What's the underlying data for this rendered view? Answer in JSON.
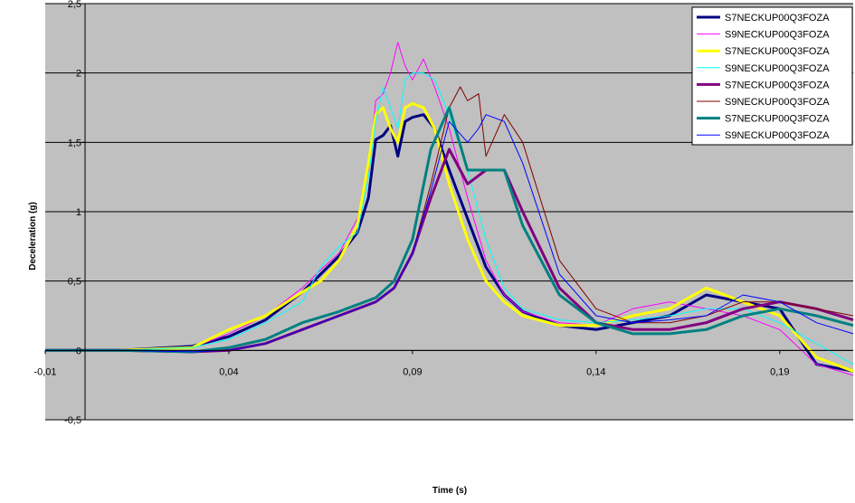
{
  "chart_data": {
    "type": "line",
    "xlabel": "Time (s)",
    "ylabel": "Deceleration (g)",
    "xlim": [
      -0.01,
      0.21
    ],
    "ylim": [
      -0.5,
      2.5
    ],
    "x_ticks": [
      "-0,01",
      "0,04",
      "0,09",
      "0,14",
      "0,19"
    ],
    "x_tick_values": [
      -0.01,
      0.04,
      0.09,
      0.14,
      0.19
    ],
    "y_ticks": [
      "-0,5",
      "0",
      "0,5",
      "1",
      "1,5",
      "2",
      "2,5"
    ],
    "y_tick_values": [
      -0.5,
      0,
      0.5,
      1,
      1.5,
      2,
      2.5
    ],
    "plot_background": "#c0c0c0",
    "grid": "horizontal",
    "legend_position": "top-right",
    "series": [
      {
        "name": "S7NECKUP00Q3FOZA",
        "color": "#000080",
        "width": 3,
        "x": [
          -0.01,
          0.01,
          0.03,
          0.04,
          0.05,
          0.06,
          0.065,
          0.07,
          0.075,
          0.078,
          0.08,
          0.082,
          0.084,
          0.086,
          0.088,
          0.09,
          0.093,
          0.096,
          0.1,
          0.105,
          0.11,
          0.115,
          0.12,
          0.13,
          0.14,
          0.15,
          0.16,
          0.17,
          0.18,
          0.19,
          0.2,
          0.21
        ],
        "y": [
          0,
          0,
          0.03,
          0.1,
          0.22,
          0.42,
          0.55,
          0.68,
          0.85,
          1.1,
          1.52,
          1.55,
          1.62,
          1.4,
          1.65,
          1.68,
          1.7,
          1.6,
          1.3,
          0.95,
          0.6,
          0.4,
          0.28,
          0.18,
          0.15,
          0.2,
          0.25,
          0.4,
          0.35,
          0.3,
          -0.1,
          -0.15
        ]
      },
      {
        "name": "S9NECKUP00Q3FOZA",
        "color": "#ff00ff",
        "width": 1,
        "x": [
          -0.01,
          0.01,
          0.03,
          0.04,
          0.05,
          0.06,
          0.065,
          0.07,
          0.075,
          0.078,
          0.08,
          0.082,
          0.084,
          0.086,
          0.088,
          0.09,
          0.093,
          0.096,
          0.1,
          0.105,
          0.11,
          0.115,
          0.12,
          0.13,
          0.14,
          0.15,
          0.16,
          0.17,
          0.18,
          0.19,
          0.2,
          0.21
        ],
        "y": [
          0,
          0,
          0.02,
          0.12,
          0.25,
          0.45,
          0.58,
          0.7,
          0.95,
          1.3,
          1.8,
          1.85,
          2.0,
          2.22,
          2.05,
          1.95,
          2.1,
          1.9,
          1.6,
          1.1,
          0.65,
          0.4,
          0.28,
          0.2,
          0.18,
          0.3,
          0.35,
          0.3,
          0.25,
          0.15,
          -0.1,
          -0.18
        ]
      },
      {
        "name": "S7NECKUP00Q3FOZA",
        "color": "#ffff00",
        "width": 3,
        "x": [
          -0.01,
          0.01,
          0.03,
          0.04,
          0.05,
          0.06,
          0.065,
          0.07,
          0.075,
          0.078,
          0.08,
          0.082,
          0.084,
          0.086,
          0.088,
          0.09,
          0.093,
          0.096,
          0.1,
          0.105,
          0.11,
          0.115,
          0.12,
          0.13,
          0.14,
          0.15,
          0.16,
          0.17,
          0.18,
          0.19,
          0.2,
          0.21
        ],
        "y": [
          0,
          0,
          0.02,
          0.15,
          0.25,
          0.42,
          0.5,
          0.65,
          0.9,
          1.35,
          1.7,
          1.75,
          1.6,
          1.5,
          1.75,
          1.78,
          1.75,
          1.6,
          1.2,
          0.8,
          0.5,
          0.35,
          0.25,
          0.18,
          0.18,
          0.25,
          0.3,
          0.45,
          0.35,
          0.25,
          -0.05,
          -0.15
        ]
      },
      {
        "name": "S9NECKUP00Q3FOZA",
        "color": "#00ffff",
        "width": 1,
        "x": [
          -0.01,
          0.01,
          0.03,
          0.04,
          0.05,
          0.06,
          0.065,
          0.07,
          0.075,
          0.078,
          0.08,
          0.082,
          0.084,
          0.086,
          0.088,
          0.09,
          0.093,
          0.096,
          0.1,
          0.105,
          0.11,
          0.115,
          0.12,
          0.13,
          0.14,
          0.15,
          0.16,
          0.17,
          0.18,
          0.19,
          0.2,
          0.21
        ],
        "y": [
          0,
          0,
          0.02,
          0.08,
          0.2,
          0.35,
          0.6,
          0.75,
          0.85,
          1.25,
          1.65,
          1.9,
          1.75,
          1.6,
          1.95,
          2.0,
          2.0,
          1.95,
          1.7,
          1.3,
          0.8,
          0.45,
          0.3,
          0.22,
          0.2,
          0.22,
          0.25,
          0.3,
          0.3,
          0.2,
          0.05,
          -0.1
        ]
      },
      {
        "name": "S7NECKUP00Q3FOZA",
        "color": "#800080",
        "width": 3,
        "x": [
          -0.01,
          0.01,
          0.03,
          0.04,
          0.05,
          0.06,
          0.07,
          0.08,
          0.085,
          0.09,
          0.095,
          0.1,
          0.105,
          0.11,
          0.115,
          0.12,
          0.13,
          0.14,
          0.15,
          0.16,
          0.17,
          0.18,
          0.19,
          0.2,
          0.21
        ],
        "y": [
          0,
          0,
          -0.01,
          0.0,
          0.05,
          0.15,
          0.25,
          0.35,
          0.45,
          0.7,
          1.1,
          1.45,
          1.2,
          1.3,
          1.3,
          1.0,
          0.45,
          0.2,
          0.15,
          0.15,
          0.2,
          0.3,
          0.35,
          0.3,
          0.22
        ]
      },
      {
        "name": "S9NECKUP00Q3FOZA",
        "color": "#800000",
        "width": 1,
        "x": [
          -0.01,
          0.01,
          0.03,
          0.04,
          0.05,
          0.06,
          0.07,
          0.08,
          0.085,
          0.09,
          0.095,
          0.1,
          0.103,
          0.105,
          0.108,
          0.11,
          0.115,
          0.12,
          0.13,
          0.14,
          0.15,
          0.16,
          0.17,
          0.18,
          0.19,
          0.2,
          0.21
        ],
        "y": [
          0,
          0,
          -0.01,
          0.0,
          0.05,
          0.15,
          0.25,
          0.35,
          0.45,
          0.7,
          1.2,
          1.75,
          1.9,
          1.8,
          1.85,
          1.4,
          1.7,
          1.5,
          0.65,
          0.3,
          0.2,
          0.2,
          0.25,
          0.35,
          0.35,
          0.3,
          0.25
        ]
      },
      {
        "name": "S7NECKUP00Q3FOZA",
        "color": "#008080",
        "width": 3,
        "x": [
          -0.01,
          0.01,
          0.03,
          0.04,
          0.05,
          0.06,
          0.07,
          0.08,
          0.085,
          0.09,
          0.095,
          0.1,
          0.105,
          0.11,
          0.115,
          0.12,
          0.13,
          0.14,
          0.15,
          0.16,
          0.17,
          0.18,
          0.19,
          0.2,
          0.21
        ],
        "y": [
          0,
          0,
          -0.01,
          0.02,
          0.08,
          0.2,
          0.28,
          0.38,
          0.5,
          0.8,
          1.45,
          1.75,
          1.3,
          1.3,
          1.3,
          0.9,
          0.4,
          0.2,
          0.12,
          0.12,
          0.15,
          0.25,
          0.3,
          0.25,
          0.18
        ]
      },
      {
        "name": "S9NECKUP00Q3FOZA",
        "color": "#0000ff",
        "width": 1,
        "x": [
          -0.01,
          0.01,
          0.03,
          0.04,
          0.05,
          0.06,
          0.07,
          0.08,
          0.085,
          0.09,
          0.095,
          0.1,
          0.105,
          0.108,
          0.11,
          0.115,
          0.12,
          0.13,
          0.14,
          0.15,
          0.16,
          0.17,
          0.18,
          0.19,
          0.2,
          0.21
        ],
        "y": [
          0,
          0,
          -0.01,
          0.0,
          0.05,
          0.15,
          0.25,
          0.35,
          0.45,
          0.7,
          1.15,
          1.65,
          1.5,
          1.6,
          1.7,
          1.65,
          1.35,
          0.55,
          0.25,
          0.2,
          0.22,
          0.25,
          0.4,
          0.35,
          0.2,
          0.12
        ]
      }
    ]
  }
}
